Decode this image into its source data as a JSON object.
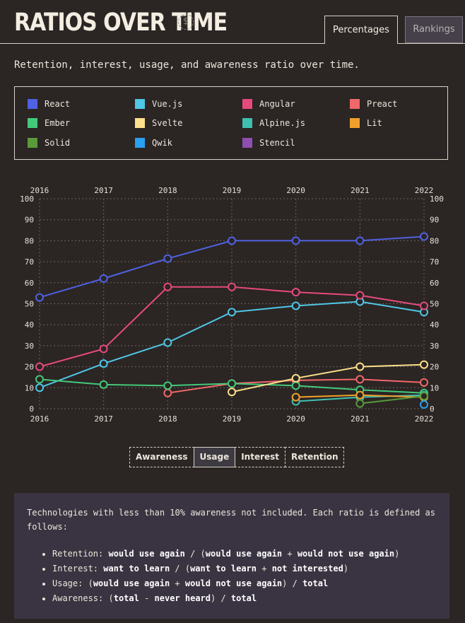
{
  "header": {
    "title": "RATIOS OVER TIME",
    "currency_symbol": "$"
  },
  "tabs": [
    {
      "label": "Percentages",
      "active": true
    },
    {
      "label": "Rankings",
      "active": false
    }
  ],
  "subtitle": "Retention, interest, usage, and awareness ratio over time.",
  "metric_buttons": [
    {
      "label": "Awareness",
      "active": false
    },
    {
      "label": "Usage",
      "active": true
    },
    {
      "label": "Interest",
      "active": false
    },
    {
      "label": "Retention",
      "active": false
    }
  ],
  "note": {
    "intro": "Technologies with less than 10% awareness not included. Each ratio is defined as follows:",
    "items": [
      {
        "name": "Retention:",
        "formula": [
          [
            "b",
            "would use again"
          ],
          [
            "t",
            " / ("
          ],
          [
            "b",
            "would use again"
          ],
          [
            "t",
            " + "
          ],
          [
            "b",
            "would not use again"
          ],
          [
            "t",
            ")"
          ]
        ]
      },
      {
        "name": "Interest:",
        "formula": [
          [
            "b",
            "want to learn"
          ],
          [
            "t",
            " / ("
          ],
          [
            "b",
            "want to learn"
          ],
          [
            "t",
            " + "
          ],
          [
            "b",
            "not interested"
          ],
          [
            "t",
            ")"
          ]
        ]
      },
      {
        "name": "Usage:",
        "formula": [
          [
            "t",
            "("
          ],
          [
            "b",
            "would use again"
          ],
          [
            "t",
            " + "
          ],
          [
            "b",
            "would not use again"
          ],
          [
            "t",
            ") / "
          ],
          [
            "b",
            "total"
          ]
        ]
      },
      {
        "name": "Awareness:",
        "formula": [
          [
            "t",
            "("
          ],
          [
            "b",
            "total"
          ],
          [
            "t",
            " - "
          ],
          [
            "b",
            "never heard"
          ],
          [
            "t",
            ") / "
          ],
          [
            "b",
            "total"
          ]
        ]
      }
    ]
  },
  "chart_data": {
    "type": "line",
    "x": [
      2016,
      2017,
      2018,
      2019,
      2020,
      2021,
      2022
    ],
    "ylim": [
      0,
      100
    ],
    "yticks": [
      0,
      10,
      20,
      30,
      40,
      50,
      60,
      70,
      80,
      90,
      100
    ],
    "grid": true,
    "legend_position": "top",
    "series": [
      {
        "name": "React",
        "color": "#4f62e2",
        "values": [
          53,
          62,
          71.5,
          80,
          80,
          80,
          82
        ]
      },
      {
        "name": "Vue.js",
        "color": "#4fc7e5",
        "values": [
          10,
          21.5,
          31.5,
          46,
          49,
          51,
          46
        ]
      },
      {
        "name": "Angular",
        "color": "#e64a7d",
        "values": [
          20,
          28.5,
          58,
          58,
          55.5,
          54,
          49
        ]
      },
      {
        "name": "Preact",
        "color": "#f06868",
        "values": [
          null,
          null,
          7.5,
          12,
          13.5,
          14,
          12.5
        ]
      },
      {
        "name": "Ember",
        "color": "#44c97a",
        "values": [
          14,
          11.5,
          11,
          12,
          11,
          9,
          7.5
        ]
      },
      {
        "name": "Svelte",
        "color": "#fde08a",
        "values": [
          null,
          null,
          null,
          8,
          14.5,
          20,
          21
        ]
      },
      {
        "name": "Alpine.js",
        "color": "#3fbfb0",
        "values": [
          null,
          null,
          null,
          null,
          3.5,
          5.5,
          6.5
        ]
      },
      {
        "name": "Lit",
        "color": "#f0a02a",
        "values": [
          null,
          null,
          null,
          null,
          5.5,
          6.5,
          5.5
        ]
      },
      {
        "name": "Solid",
        "color": "#5a9a3a",
        "values": [
          null,
          null,
          null,
          null,
          null,
          2.5,
          6
        ]
      },
      {
        "name": "Qwik",
        "color": "#2aa0f0",
        "values": [
          null,
          null,
          null,
          null,
          null,
          null,
          2
        ]
      },
      {
        "name": "Stencil",
        "color": "#8e4fb0",
        "values": [
          null,
          null,
          null,
          null,
          null,
          null,
          null
        ]
      }
    ]
  }
}
